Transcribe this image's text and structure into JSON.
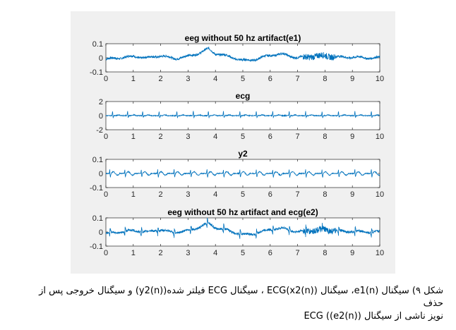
{
  "colors": {
    "figure_bg": "#f0f0f0",
    "axes_bg": "#ffffff",
    "line": "#0072bd",
    "axis": "#262626"
  },
  "chart_data": [
    {
      "type": "line",
      "title": "eeg without 50 hz artifact(e1)",
      "xlim": [
        0,
        10
      ],
      "ylim": [
        -0.1,
        0.1
      ],
      "xticks": [
        "0",
        "1",
        "2",
        "3",
        "4",
        "5",
        "6",
        "7",
        "8",
        "9",
        "10"
      ],
      "yticks": [
        "0.1",
        "0",
        "-0.1"
      ],
      "x": [
        0,
        0.5,
        1,
        1.5,
        2,
        2.5,
        3,
        3.5,
        3.75,
        4,
        4.5,
        5,
        5.5,
        6,
        6.5,
        7,
        7.5,
        8,
        8.5,
        9,
        9.5,
        10
      ],
      "values": [
        -0.01,
        0.0,
        0.01,
        0.0,
        0.015,
        -0.005,
        0.01,
        0.04,
        0.065,
        0.03,
        0.01,
        -0.02,
        -0.01,
        0.02,
        0.025,
        0.0,
        0.01,
        0.015,
        0.005,
        0.005,
        0.0,
        0.0
      ]
    },
    {
      "type": "line",
      "title": "ecg",
      "xlim": [
        0,
        10
      ],
      "ylim": [
        -2,
        2
      ],
      "xticks": [
        "0",
        "1",
        "2",
        "3",
        "4",
        "5",
        "6",
        "7",
        "8",
        "9",
        "10"
      ],
      "yticks": [
        "2",
        "0",
        "-2"
      ],
      "x": [
        0,
        10
      ],
      "values": [
        0,
        0
      ],
      "peaks_x": [
        0.25,
        0.8,
        1.35,
        1.95,
        2.6,
        3.2,
        3.75,
        4.3,
        4.9,
        5.5,
        6.1,
        6.7,
        7.3,
        7.9,
        8.5,
        9.1,
        9.7
      ],
      "peak_value": 0.8,
      "trough_value": -0.45
    },
    {
      "type": "line",
      "title": "y2",
      "xlim": [
        0,
        10
      ],
      "ylim": [
        -0.1,
        0.1
      ],
      "xticks": [
        "0",
        "1",
        "2",
        "3",
        "4",
        "5",
        "6",
        "7",
        "8",
        "9",
        "10"
      ],
      "yticks": [
        "0.1",
        "0",
        "-0.1"
      ],
      "x": [
        0,
        10
      ],
      "values": [
        0,
        0
      ],
      "peaks_x": [
        0.15,
        0.7,
        1.3,
        1.9,
        2.5,
        3.1,
        3.7,
        4.3,
        4.9,
        5.5,
        6.1,
        6.7,
        7.3,
        7.9,
        8.5,
        9.1,
        9.7
      ],
      "peak_value": 0.035,
      "trough_value": -0.04
    },
    {
      "type": "line",
      "title": "eeg without 50 hz artifact and ecg(e2)",
      "xlim": [
        0,
        10
      ],
      "ylim": [
        -0.1,
        0.1
      ],
      "xticks": [
        "0",
        "1",
        "2",
        "3",
        "4",
        "5",
        "6",
        "7",
        "8",
        "9",
        "10"
      ],
      "yticks": [
        "0.1",
        "0",
        "-0.1"
      ],
      "x": [
        0,
        0.5,
        1,
        1.5,
        2,
        2.5,
        3,
        3.5,
        3.75,
        4,
        4.5,
        5,
        5.5,
        6,
        6.5,
        7,
        7.5,
        8,
        8.5,
        9,
        9.5,
        10
      ],
      "values": [
        -0.01,
        0.0,
        0.01,
        0.0,
        0.015,
        -0.005,
        0.01,
        0.04,
        0.065,
        0.03,
        0.01,
        -0.02,
        -0.01,
        0.02,
        0.025,
        0.0,
        0.01,
        0.015,
        0.005,
        0.005,
        0.0,
        0.0
      ]
    }
  ],
  "caption": {
    "line1": "شکل ۹) سیگنال (e1(n، سیگنال ECG(x2(n)) ، سیگنال ECG فیلتر شده(y2(n)) و سیگنال خروجی پس از حذف",
    "line2": "نویز ناشی از سیگنال ECG ((e2(n))"
  }
}
